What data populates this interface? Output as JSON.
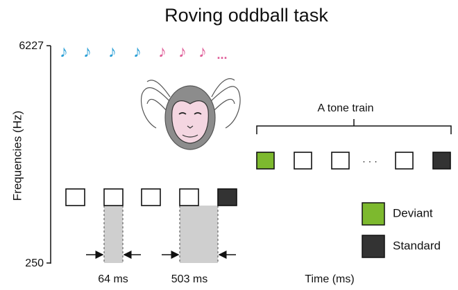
{
  "title": "Roving oddball task",
  "y_axis": {
    "label": "Frequencies (Hz)",
    "ticks": [
      "6227",
      "250"
    ]
  },
  "x_axis": {
    "label": "Time (ms)"
  },
  "durations": [
    "64 ms",
    "503 ms"
  ],
  "notes": [
    {
      "text": "♪",
      "color": "#2a9fd6"
    },
    {
      "text": "♪",
      "color": "#2a9fd6"
    },
    {
      "text": "♪",
      "color": "#2a9fd6"
    },
    {
      "text": "♪",
      "color": "#2a9fd6"
    },
    {
      "text": "♪",
      "color": "#e0609a"
    },
    {
      "text": "♪",
      "color": "#e0609a"
    },
    {
      "text": "♪",
      "color": "#e0609a"
    }
  ],
  "notes_ellipsis": "...",
  "tone_train": {
    "label": "A tone train",
    "ellipsis": "· · ·"
  },
  "legend": [
    {
      "label": "Deviant",
      "color": "#7db92e"
    },
    {
      "label": "Standard",
      "color": "#333333"
    }
  ]
}
